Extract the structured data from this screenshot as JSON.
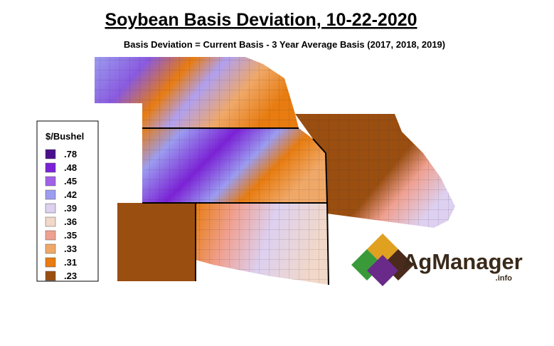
{
  "title": "Soybean Basis Deviation, 10-22-2020",
  "subtitle": "Basis Deviation = Current Basis - 3 Year Average Basis (2017, 2018, 2019)",
  "legend": {
    "title": "$/Bushel",
    "items": [
      {
        "label": ".78",
        "color": "#4b0f8c"
      },
      {
        "label": ".48",
        "color": "#7b22d6"
      },
      {
        "label": ".45",
        "color": "#a060e8"
      },
      {
        "label": ".42",
        "color": "#9c9cf0"
      },
      {
        "label": ".39",
        "color": "#ddd0f0"
      },
      {
        "label": ".36",
        "color": "#f2d8c8"
      },
      {
        "label": ".35",
        "color": "#f0a090"
      },
      {
        "label": ".33",
        "color": "#f0a868"
      },
      {
        "label": ".31",
        "color": "#e87c10"
      },
      {
        "label": ".23",
        "color": "#9a4e10"
      }
    ]
  },
  "logo": {
    "name": "AgManager",
    "suffix": ".info"
  }
}
